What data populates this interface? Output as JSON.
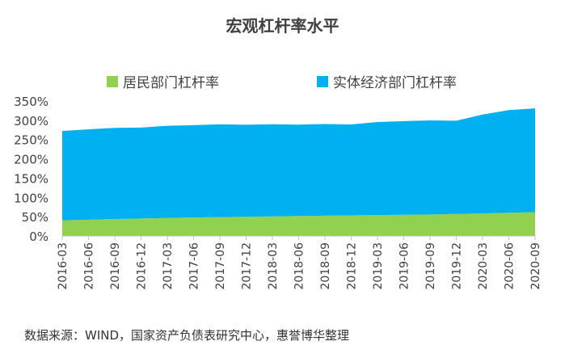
{
  "chart_data": {
    "type": "area",
    "title": "宏观杠杆率水平",
    "xlabel": "",
    "ylabel": "",
    "stacked": true,
    "ylim": [
      0,
      350
    ],
    "yticks": [
      "0%",
      "50%",
      "100%",
      "150%",
      "200%",
      "250%",
      "300%",
      "350%"
    ],
    "legend_position": "top",
    "grid": false,
    "categories": [
      "2016-03",
      "2016-06",
      "2016-09",
      "2016-12",
      "2017-03",
      "2017-06",
      "2017-09",
      "2017-12",
      "2018-03",
      "2018-06",
      "2018-09",
      "2018-12",
      "2019-03",
      "2019-06",
      "2019-09",
      "2019-12",
      "2020-03",
      "2020-06",
      "2020-09"
    ],
    "series": [
      {
        "name": "居民部门杠杆率",
        "color": "#92d050",
        "values": [
          40.7,
          42.1,
          44.0,
          45.2,
          46.5,
          47.9,
          49.0,
          49.8,
          50.7,
          51.8,
          52.6,
          53.4,
          54.3,
          55.1,
          55.9,
          57.0,
          58.5,
          60.3,
          61.9
        ]
      },
      {
        "name": "实体经济部门杠杆率",
        "color": "#00b0f0",
        "values": [
          231.5,
          234.6,
          236.3,
          236.0,
          239.3,
          239.5,
          240.5,
          238.7,
          239.0,
          237.0,
          237.8,
          235.7,
          241.2,
          242.8,
          243.8,
          242.0,
          256.5,
          266.2,
          269.1
        ]
      }
    ]
  },
  "source_note": "数据来源：WIND，国家资产负债表研究中心，惠誉博华整理"
}
